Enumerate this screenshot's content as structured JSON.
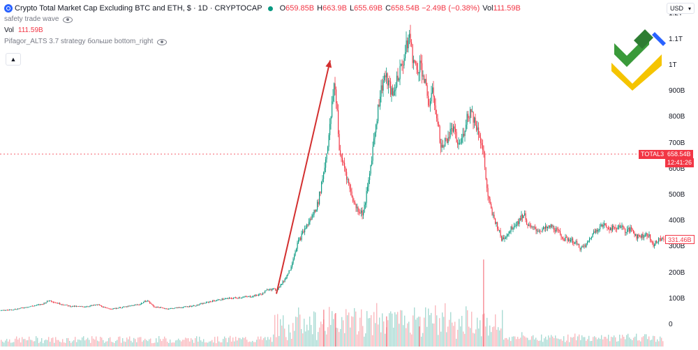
{
  "header": {
    "title": "Crypto Total Market Cap Excluding BTC and ETH, $ · 1D · CRYPTOCAP",
    "ohlc": [
      {
        "k": "O",
        "v": "659.85B"
      },
      {
        "k": "H",
        "v": "663.9B"
      },
      {
        "k": "L",
        "v": "655.69B"
      },
      {
        "k": "C",
        "v": "658.54B"
      },
      {
        "k": "",
        "v": "−2.49B (−0.38%)"
      },
      {
        "k": "Vol",
        "v": "111.59B"
      }
    ],
    "indicator_1": "safety trade wave",
    "vol_label": "Vol",
    "vol_value": "111.59B",
    "indicator_2": "Pifagor_ALTS 3.7 strategy больше bottom_right",
    "collapse_icon": "chevron-up-icon"
  },
  "currency_button": "USD",
  "price_axis": {
    "labels": [
      "1.2T",
      "1.1T",
      "1T",
      "900B",
      "800B",
      "700B",
      "600B",
      "500B",
      "400B",
      "300B",
      "200B",
      "100B",
      "0"
    ]
  },
  "tags": {
    "symbol": "TOTAL3",
    "price": "658.54B",
    "countdown": "12:41:26",
    "secondary": "331.46B"
  },
  "colors": {
    "up": "#089981",
    "down": "#f23645",
    "arrow": "#d32f2f",
    "accent": "#2962ff"
  },
  "chart_data": {
    "type": "candlestick",
    "unit": "B",
    "ylim": [
      0,
      1200
    ],
    "current_price": 658.54,
    "close_path": [
      [
        0,
        55
      ],
      [
        20,
        60
      ],
      [
        40,
        70
      ],
      [
        60,
        80
      ],
      [
        70,
        95
      ],
      [
        80,
        85
      ],
      [
        100,
        72
      ],
      [
        120,
        70
      ],
      [
        140,
        78
      ],
      [
        150,
        65
      ],
      [
        160,
        62
      ],
      [
        180,
        70
      ],
      [
        200,
        80
      ],
      [
        210,
        95
      ],
      [
        220,
        70
      ],
      [
        240,
        62
      ],
      [
        260,
        68
      ],
      [
        280,
        75
      ],
      [
        300,
        90
      ],
      [
        320,
        100
      ],
      [
        340,
        105
      ],
      [
        360,
        110
      ],
      [
        375,
        120
      ],
      [
        385,
        140
      ],
      [
        395,
        135
      ],
      [
        405,
        165
      ],
      [
        415,
        215
      ],
      [
        425,
        310
      ],
      [
        435,
        365
      ],
      [
        445,
        410
      ],
      [
        455,
        470
      ],
      [
        465,
        620
      ],
      [
        472,
        760
      ],
      [
        478,
        930
      ],
      [
        482,
        850
      ],
      [
        486,
        650
      ],
      [
        492,
        620
      ],
      [
        500,
        530
      ],
      [
        508,
        460
      ],
      [
        514,
        440
      ],
      [
        520,
        430
      ],
      [
        528,
        560
      ],
      [
        536,
        740
      ],
      [
        544,
        890
      ],
      [
        550,
        960
      ],
      [
        556,
        930
      ],
      [
        562,
        880
      ],
      [
        568,
        950
      ],
      [
        574,
        990
      ],
      [
        580,
        1050
      ],
      [
        586,
        1120
      ],
      [
        590,
        1040
      ],
      [
        596,
        980
      ],
      [
        602,
        1010
      ],
      [
        608,
        930
      ],
      [
        614,
        850
      ],
      [
        620,
        900
      ],
      [
        626,
        780
      ],
      [
        632,
        680
      ],
      [
        640,
        720
      ],
      [
        648,
        760
      ],
      [
        656,
        690
      ],
      [
        662,
        720
      ],
      [
        668,
        800
      ],
      [
        674,
        830
      ],
      [
        680,
        780
      ],
      [
        686,
        740
      ],
      [
        692,
        660
      ],
      [
        698,
        500
      ],
      [
        704,
        430
      ],
      [
        712,
        380
      ],
      [
        718,
        330
      ],
      [
        726,
        350
      ],
      [
        734,
        380
      ],
      [
        742,
        400
      ],
      [
        750,
        430
      ],
      [
        756,
        380
      ],
      [
        764,
        370
      ],
      [
        772,
        365
      ],
      [
        780,
        370
      ],
      [
        790,
        380
      ],
      [
        800,
        355
      ],
      [
        808,
        330
      ],
      [
        816,
        330
      ],
      [
        824,
        315
      ],
      [
        832,
        295
      ],
      [
        840,
        310
      ],
      [
        848,
        350
      ],
      [
        856,
        375
      ],
      [
        864,
        385
      ],
      [
        872,
        375
      ],
      [
        880,
        370
      ],
      [
        888,
        385
      ],
      [
        896,
        360
      ],
      [
        904,
        370
      ],
      [
        912,
        340
      ],
      [
        920,
        345
      ],
      [
        928,
        350
      ],
      [
        934,
        310
      ],
      [
        940,
        320
      ],
      [
        946,
        330
      ],
      [
        951,
        335
      ]
    ],
    "volume_spikes": [
      [
        692,
        260
      ],
      [
        463,
        110
      ],
      [
        480,
        100
      ],
      [
        553,
        90
      ],
      [
        600,
        60
      ]
    ],
    "trend_arrow": {
      "from": [
        396,
        120
      ],
      "to": [
        473,
        1020
      ]
    }
  }
}
